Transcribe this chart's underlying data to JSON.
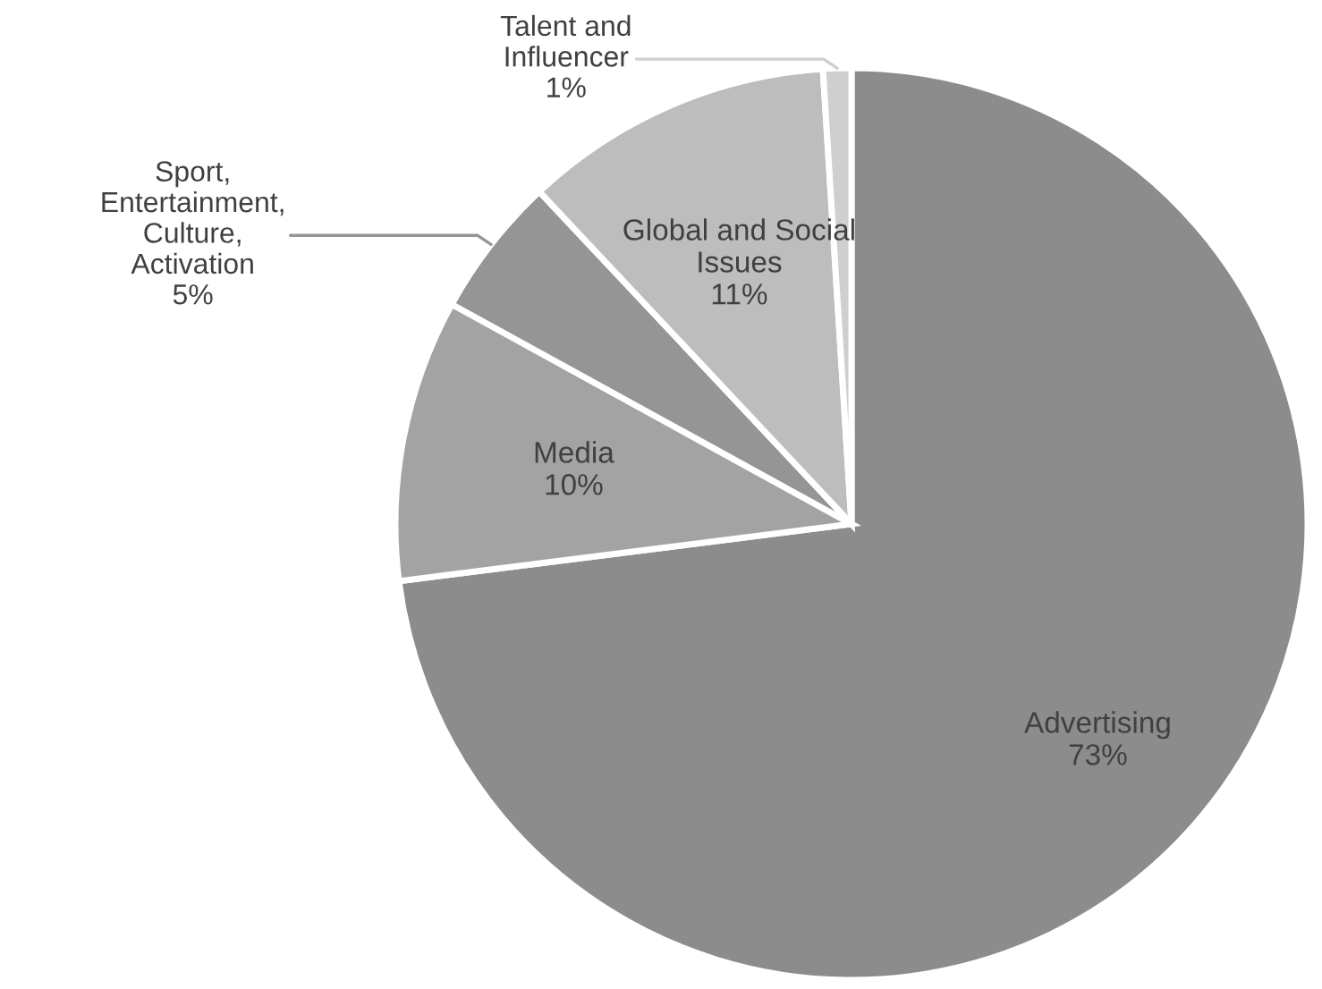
{
  "chart_data": {
    "type": "pie",
    "categories": [
      "Advertising",
      "Media",
      "Sport,\nEntertainment,\nCulture,\nActivation",
      "Global and Social\nIssues",
      "Talent and\nInfluencer"
    ],
    "values": [
      73,
      10,
      5,
      11,
      1
    ],
    "value_labels": [
      "73%",
      "10%",
      "5%",
      "11%",
      "1%"
    ],
    "colors": [
      "#8c8c8c",
      "#a3a3a3",
      "#959595",
      "#bdbdbd",
      "#cfcfcf"
    ]
  }
}
